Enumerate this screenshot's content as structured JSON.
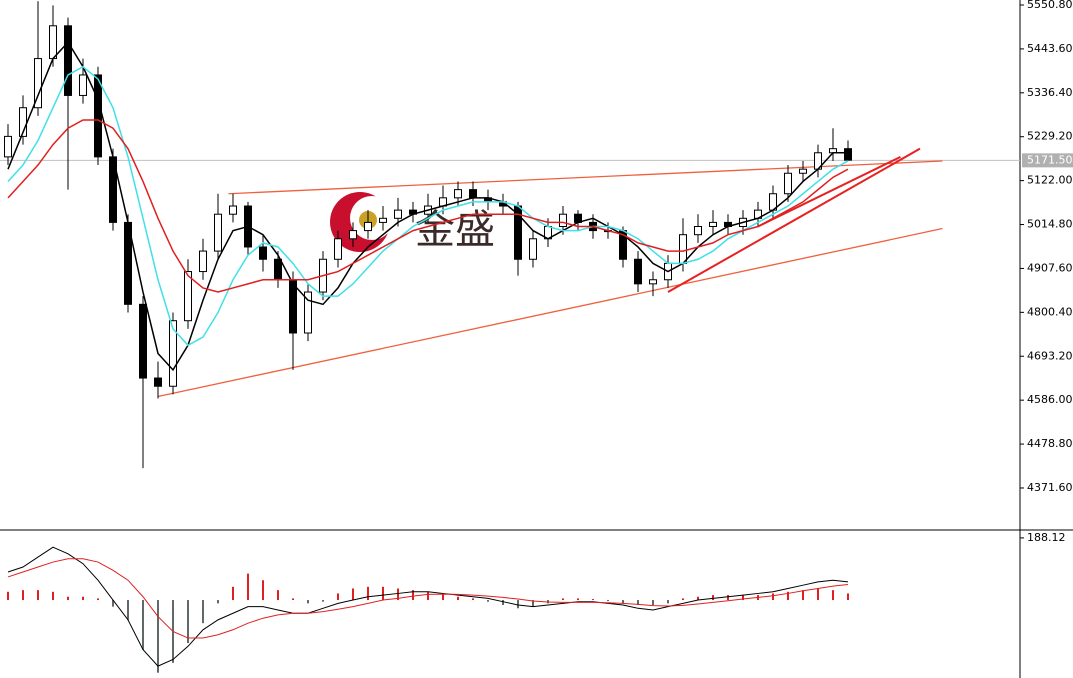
{
  "chart_data": [
    {
      "type": "candlestick",
      "watermark": "金盛",
      "open": [
        5180,
        5230,
        5300,
        5420,
        5500,
        5330,
        5380,
        5180,
        5020,
        4820,
        4640,
        4620,
        4780,
        4900,
        4950,
        5040,
        5060,
        4960,
        4930,
        4880,
        4750,
        4850,
        4930,
        4980,
        5000,
        5020,
        5030,
        5050,
        5040,
        5060,
        5080,
        5100,
        5080,
        5070,
        5060,
        4930,
        4980,
        5010,
        5040,
        5020,
        5000,
        5000,
        4930,
        4870,
        4880,
        4920,
        4990,
        5010,
        5020,
        5010,
        5030,
        5050,
        5090,
        5140,
        5150,
        5190,
        5200
      ],
      "high": [
        5260,
        5330,
        5560,
        5550,
        5520,
        5420,
        5400,
        5200,
        5040,
        4840,
        4680,
        4800,
        4930,
        4980,
        5090,
        5090,
        5070,
        4990,
        4950,
        4900,
        4870,
        4950,
        5000,
        5020,
        5050,
        5060,
        5080,
        5070,
        5090,
        5110,
        5120,
        5120,
        5100,
        5090,
        5070,
        5000,
        5030,
        5060,
        5050,
        5040,
        5020,
        5010,
        4950,
        4900,
        4940,
        5030,
        5040,
        5050,
        5040,
        5050,
        5070,
        5110,
        5160,
        5170,
        5210,
        5250,
        5220
      ],
      "low": [
        5160,
        5210,
        5280,
        5400,
        5100,
        5310,
        5160,
        5000,
        4800,
        4420,
        4590,
        4600,
        4760,
        4880,
        4930,
        5020,
        4940,
        4900,
        4860,
        4660,
        4730,
        4830,
        4910,
        4960,
        4980,
        5000,
        5010,
        5020,
        5020,
        5040,
        5060,
        5060,
        5050,
        5040,
        4890,
        4910,
        4960,
        4990,
        5000,
        4980,
        4980,
        4910,
        4850,
        4840,
        4860,
        4900,
        4970,
        4990,
        4990,
        4990,
        5010,
        5030,
        5070,
        5120,
        5130,
        5170,
        5180
      ],
      "close": [
        5230,
        5300,
        5420,
        5500,
        5330,
        5380,
        5180,
        5020,
        4820,
        4640,
        4620,
        4780,
        4900,
        4950,
        5040,
        5060,
        4960,
        4930,
        4880,
        4750,
        4850,
        4930,
        4980,
        5000,
        5020,
        5030,
        5050,
        5040,
        5060,
        5080,
        5100,
        5080,
        5070,
        5060,
        4930,
        4980,
        5010,
        5040,
        5020,
        5000,
        5000,
        4930,
        4870,
        4880,
        4920,
        4990,
        5010,
        5020,
        5010,
        5030,
        5050,
        5090,
        5140,
        5150,
        5190,
        5200,
        5172
      ],
      "moving_averages": [
        {
          "color": "#000000",
          "values": [
            5150,
            5240,
            5330,
            5420,
            5460,
            5400,
            5320,
            5180,
            5020,
            4850,
            4700,
            4660,
            4720,
            4830,
            4930,
            5000,
            5010,
            4990,
            4940,
            4870,
            4830,
            4820,
            4860,
            4920,
            4960,
            4990,
            5020,
            5040,
            5050,
            5060,
            5070,
            5080,
            5080,
            5070,
            5040,
            5000,
            4980,
            5000,
            5020,
            5030,
            5010,
            4990,
            4960,
            4920,
            4900,
            4920,
            4960,
            4990,
            5010,
            5020,
            5030,
            5050,
            5080,
            5120,
            5150,
            5190,
            5190
          ]
        },
        {
          "color": "#40e0e8",
          "values": [
            5120,
            5160,
            5220,
            5300,
            5380,
            5400,
            5370,
            5300,
            5180,
            5030,
            4880,
            4760,
            4720,
            4740,
            4800,
            4880,
            4940,
            4970,
            4960,
            4920,
            4870,
            4840,
            4840,
            4870,
            4910,
            4950,
            4980,
            5010,
            5030,
            5050,
            5060,
            5070,
            5070,
            5070,
            5060,
            5030,
            5010,
            5000,
            5000,
            5010,
            5010,
            5000,
            4980,
            4950,
            4920,
            4920,
            4930,
            4950,
            4980,
            5000,
            5020,
            5040,
            5060,
            5090,
            5120,
            5150,
            5170
          ]
        },
        {
          "color": "#e02020",
          "values": [
            5080,
            5120,
            5160,
            5210,
            5250,
            5270,
            5270,
            5250,
            5200,
            5120,
            5030,
            4950,
            4890,
            4860,
            4850,
            4860,
            4870,
            4880,
            4880,
            4880,
            4880,
            4890,
            4900,
            4920,
            4940,
            4960,
            4980,
            5000,
            5010,
            5020,
            5030,
            5040,
            5040,
            5040,
            5040,
            5030,
            5020,
            5020,
            5010,
            5010,
            5000,
            4990,
            4970,
            4960,
            4950,
            4950,
            4960,
            4970,
            4990,
            5000,
            5010,
            5030,
            5050,
            5070,
            5100,
            5130,
            5150
          ]
        }
      ],
      "trendlines": [
        {
          "color": "#f06040",
          "x": [
            14.7,
            62.3
          ],
          "y": [
            5090,
            5170
          ]
        },
        {
          "color": "#f06040",
          "x": [
            10,
            62.3
          ],
          "y": [
            4595,
            5005
          ]
        },
        {
          "color": "#e82020",
          "x": [
            44,
            60.8
          ],
          "y": [
            4850,
            5200
          ]
        },
        {
          "color": "#e82020",
          "x": [
            50,
            59.5
          ],
          "y": [
            5010,
            5180
          ]
        }
      ],
      "ylim": [
        4269,
        5563
      ],
      "yticks": [
        {
          "value": 5550.8,
          "label": "5550.80"
        },
        {
          "value": 5443.6,
          "label": "5443.60"
        },
        {
          "value": 5336.4,
          "label": "5336.40"
        },
        {
          "value": 5229.2,
          "label": "5229.20"
        },
        {
          "value": 5122.0,
          "label": "5122.00"
        },
        {
          "value": 5014.8,
          "label": "5014.80"
        },
        {
          "value": 4907.6,
          "label": "4907.60"
        },
        {
          "value": 4800.4,
          "label": "4800.40"
        },
        {
          "value": 4693.2,
          "label": "4693.20"
        },
        {
          "value": 4586.0,
          "label": "4586.00"
        },
        {
          "value": 4478.8,
          "label": "4478.80"
        },
        {
          "value": 4371.6,
          "label": "4371.60"
        }
      ],
      "last_price": {
        "value": 5171.5,
        "label": "5171.50"
      }
    },
    {
      "type": "macd",
      "histogram": [
        25,
        30,
        30,
        25,
        10,
        10,
        5,
        -20,
        -60,
        -150,
        -220,
        -190,
        -130,
        -70,
        -10,
        40,
        80,
        60,
        30,
        5,
        -10,
        -5,
        20,
        35,
        40,
        40,
        35,
        30,
        25,
        20,
        10,
        5,
        -5,
        -15,
        -25,
        -20,
        -10,
        5,
        5,
        3,
        -3,
        -10,
        -15,
        -15,
        -10,
        5,
        10,
        15,
        15,
        15,
        15,
        20,
        25,
        30,
        35,
        30,
        20
      ],
      "up_color": "#e02020",
      "down_color": "#606868",
      "macd": [
        85,
        100,
        130,
        160,
        140,
        110,
        60,
        0,
        -60,
        -150,
        -200,
        -180,
        -140,
        -90,
        -60,
        -40,
        -20,
        -20,
        -30,
        -40,
        -40,
        -25,
        -10,
        0,
        10,
        15,
        20,
        25,
        25,
        20,
        15,
        10,
        5,
        -5,
        -15,
        -20,
        -15,
        -10,
        -5,
        -5,
        -10,
        -15,
        -25,
        -30,
        -20,
        -10,
        0,
        5,
        10,
        15,
        20,
        25,
        35,
        45,
        55,
        60,
        55
      ],
      "macd_color": "#000000",
      "signal": [
        70,
        85,
        100,
        115,
        125,
        125,
        115,
        90,
        60,
        10,
        -50,
        -95,
        -115,
        -115,
        -105,
        -90,
        -70,
        -55,
        -45,
        -40,
        -40,
        -35,
        -28,
        -20,
        -10,
        0,
        5,
        12,
        17,
        18,
        17,
        15,
        12,
        8,
        3,
        -3,
        -6,
        -7,
        -7,
        -7,
        -8,
        -10,
        -13,
        -17,
        -18,
        -16,
        -12,
        -7,
        -2,
        3,
        8,
        13,
        20,
        28,
        35,
        42,
        47
      ],
      "signal_color": "#e02020",
      "ylim": [
        -236,
        206
      ],
      "yticks": [
        {
          "value": 188.12,
          "label": "188.12"
        }
      ]
    }
  ]
}
